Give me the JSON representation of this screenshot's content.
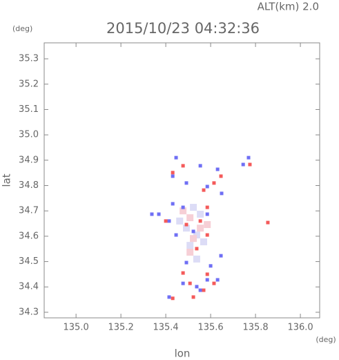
{
  "chart_data": {
    "type": "scatter",
    "title": "2015/10/23 04:32:36",
    "subtitle": "ALT(km) 2.0",
    "y_unit": "(deg)",
    "x_unit": "(deg)",
    "xlabel": "lon",
    "ylabel": "lat",
    "xlim": [
      134.858,
      136.086
    ],
    "ylim": [
      34.278,
      35.363
    ],
    "xticks": [
      {
        "value": 135.0,
        "label": "135.0"
      },
      135.2,
      135.4,
      135.6,
      135.8,
      {
        "value": 136.0,
        "label": "136.0"
      }
    ],
    "yticks": [
      35.3,
      35.2,
      35.1,
      {
        "value": 35.0,
        "label": "35.0"
      },
      34.9,
      34.8,
      34.7,
      34.6,
      34.5,
      34.4,
      34.3
    ],
    "series": [
      {
        "color": "#dcdcf6",
        "x": [
          135.492,
          135.538,
          135.508,
          135.554,
          135.523,
          135.538,
          135.462,
          135.569
        ],
        "values": [
          34.632,
          34.605,
          34.564,
          34.687,
          34.714,
          34.51,
          34.66,
          34.578
        ]
      },
      {
        "color": "#f6cfd6",
        "x": [
          135.508,
          135.554,
          135.523,
          135.477,
          135.585,
          135.508
        ],
        "values": [
          34.673,
          34.632,
          34.591,
          34.7,
          34.646,
          34.537
        ]
      },
      {
        "color": "#6f6ff4",
        "x": [
          135.446,
          135.554,
          135.631,
          135.745,
          135.769,
          135.431,
          135.492,
          135.585,
          135.649,
          135.415,
          135.477,
          135.446,
          135.523,
          135.585,
          135.492,
          135.6,
          135.585,
          135.631,
          135.538,
          135.554,
          135.415,
          135.477,
          135.369,
          135.338,
          135.431,
          135.646
        ],
        "values": [
          34.91,
          34.878,
          34.864,
          34.883,
          34.91,
          34.837,
          34.81,
          34.796,
          34.769,
          34.66,
          34.714,
          34.605,
          34.619,
          34.687,
          34.496,
          34.483,
          34.428,
          34.428,
          34.401,
          34.387,
          34.36,
          34.414,
          34.687,
          34.687,
          34.728,
          34.523
        ]
      },
      {
        "color": "#f45a5a",
        "x": [
          135.431,
          135.477,
          135.569,
          135.585,
          135.508,
          135.615,
          135.538,
          135.585,
          135.554,
          135.492,
          135.585,
          135.569,
          135.615,
          135.775,
          135.855,
          135.431,
          135.477,
          135.523,
          135.4,
          135.646
        ],
        "values": [
          34.355,
          34.455,
          34.387,
          34.45,
          34.414,
          34.414,
          34.551,
          34.605,
          34.66,
          34.646,
          34.714,
          34.782,
          34.81,
          34.883,
          34.654,
          34.851,
          34.878,
          34.36,
          34.66,
          34.837
        ]
      }
    ]
  }
}
